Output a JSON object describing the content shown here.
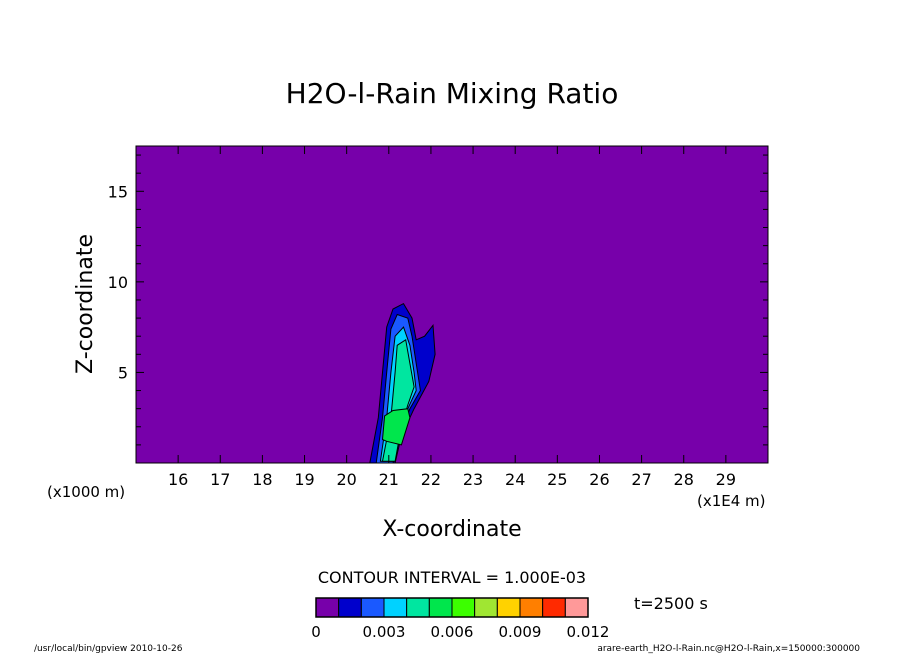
{
  "chart_data": {
    "type": "contour",
    "title": "H2O-l-Rain Mixing Ratio",
    "xlabel": "X-coordinate",
    "ylabel": "Z-coordinate",
    "x_unit_note": "(x1E4 m)",
    "z_unit_note": "(x1000 m)",
    "xlim": [
      15.0,
      30.0
    ],
    "ylim": [
      0.0,
      17.5
    ],
    "x_ticks": [
      16,
      17,
      18,
      19,
      20,
      21,
      22,
      23,
      24,
      25,
      26,
      27,
      28,
      29
    ],
    "y_ticks": [
      5,
      10,
      15
    ],
    "background_color": "#7700aa",
    "contour_interval_label": "CONTOUR INTERVAL = 1.000E-03",
    "time_label": "t=2500 s",
    "colorbar": {
      "colors": [
        "#7700aa",
        "#0000cc",
        "#1a59ff",
        "#00d2ff",
        "#00e6a0",
        "#00e64c",
        "#3cff00",
        "#a0e632",
        "#ffd200",
        "#ff7f00",
        "#ff2a00",
        "#ff9999"
      ],
      "tick_labels": [
        "0",
        "0.003",
        "0.006",
        "0.009",
        "0.012"
      ],
      "tick_values": [
        0,
        0.003,
        0.006,
        0.009,
        0.012
      ]
    },
    "contour_regions": [
      {
        "level": 0.001,
        "color": "#000000",
        "points": [
          [
            20.55,
            0
          ],
          [
            20.75,
            2.5
          ],
          [
            20.85,
            5.0
          ],
          [
            20.95,
            7.5
          ],
          [
            21.1,
            8.5
          ],
          [
            21.35,
            8.8
          ],
          [
            21.55,
            8.0
          ],
          [
            21.65,
            6.8
          ],
          [
            21.85,
            7.0
          ],
          [
            22.05,
            7.6
          ],
          [
            22.1,
            6.0
          ],
          [
            21.95,
            4.5
          ],
          [
            21.6,
            3.0
          ],
          [
            21.3,
            1.5
          ],
          [
            21.15,
            0
          ]
        ]
      },
      {
        "level": 0.002,
        "color": "#0000cc",
        "points": [
          [
            20.7,
            0
          ],
          [
            20.85,
            2.5
          ],
          [
            20.95,
            5.0
          ],
          [
            21.05,
            7.4
          ],
          [
            21.2,
            8.2
          ],
          [
            21.45,
            8.0
          ],
          [
            21.55,
            7.0
          ],
          [
            21.65,
            5.5
          ],
          [
            21.75,
            4.0
          ],
          [
            21.5,
            3.0
          ],
          [
            21.25,
            1.5
          ],
          [
            21.1,
            0
          ]
        ]
      },
      {
        "level": 0.003,
        "color": "#1a59ff",
        "points": [
          [
            20.8,
            0.1
          ],
          [
            20.95,
            2.5
          ],
          [
            21.05,
            5.0
          ],
          [
            21.15,
            7.0
          ],
          [
            21.35,
            7.5
          ],
          [
            21.5,
            6.5
          ],
          [
            21.6,
            5.0
          ],
          [
            21.65,
            4.0
          ],
          [
            21.45,
            3.0
          ],
          [
            21.25,
            1.8
          ],
          [
            21.1,
            0.1
          ]
        ]
      },
      {
        "level": 0.004,
        "color": "#00d2ff",
        "points": [
          [
            20.85,
            0.1
          ],
          [
            21.05,
            2.5
          ],
          [
            21.15,
            5.0
          ],
          [
            21.2,
            6.5
          ],
          [
            21.4,
            6.8
          ],
          [
            21.5,
            5.5
          ],
          [
            21.6,
            4.2
          ],
          [
            21.45,
            3.2
          ],
          [
            21.3,
            2.0
          ],
          [
            21.15,
            0.1
          ]
        ]
      },
      {
        "level": 0.005,
        "color": "#00e6a0",
        "points": [
          [
            20.85,
            1.3
          ],
          [
            20.9,
            2.6
          ],
          [
            21.1,
            2.9
          ],
          [
            21.45,
            3.0
          ],
          [
            21.5,
            2.5
          ],
          [
            21.3,
            1.0
          ],
          [
            20.95,
            1.2
          ]
        ]
      }
    ]
  },
  "footer": {
    "left": "/usr/local/bin/gpview  2010-10-26",
    "right": "arare-earth_H2O-l-Rain.nc@H2O-l-Rain,x=150000:300000"
  }
}
